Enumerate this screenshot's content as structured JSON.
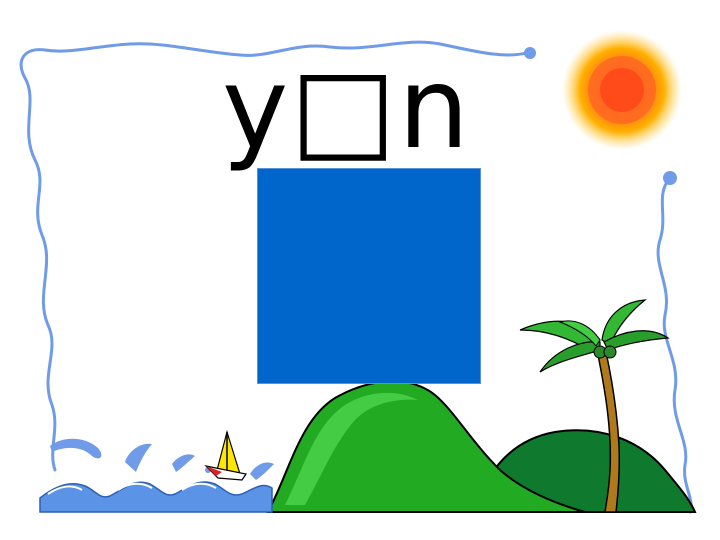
{
  "slide": {
    "pinyin_text": "y□n"
  },
  "colors": {
    "background": "#ffffff",
    "border_line": "#6f9be8",
    "card_fill": "#0066cc",
    "sun_outer": "#ffb800",
    "sun_core": "#ff5a1f",
    "hill_front": "#22aa22",
    "hill_back": "#0f7a2e",
    "water": "#5b94e6",
    "sail": "#ffe600",
    "trunk": "#b07a1c",
    "palm_leaf": "#33b833"
  },
  "icons": {
    "sun": "sun-icon",
    "sailboat": "sailboat-icon",
    "palm_tree": "palm-tree-icon"
  }
}
